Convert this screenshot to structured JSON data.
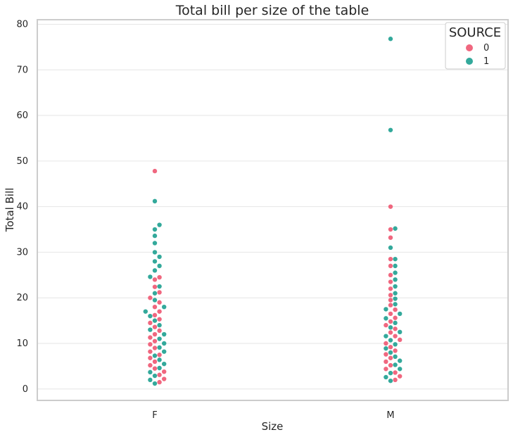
{
  "chart_data": {
    "type": "scatter",
    "plot_kind": "swarm",
    "title": "Total bill per size of the table",
    "xlabel": "Size",
    "ylabel": "Total Bill",
    "categories": [
      "F",
      "M"
    ],
    "ylim": [
      -2.5,
      81
    ],
    "yticks": [
      0,
      10,
      20,
      30,
      40,
      50,
      60,
      70,
      80
    ],
    "grid": true,
    "legend": {
      "title": "SOURCE",
      "placement": "top-right",
      "entries": [
        {
          "label": "0",
          "color": "#f0677f"
        },
        {
          "label": "1",
          "color": "#33a99b"
        }
      ]
    },
    "series": [
      {
        "name": "0",
        "color": "#f0677f",
        "values": {
          "F": [
            1.5,
            2.2,
            3.1,
            3.8,
            4.5,
            5.2,
            6.0,
            6.8,
            7.5,
            8.2,
            9.0,
            9.8,
            10.5,
            11.3,
            12.0,
            12.8,
            13.6,
            14.5,
            15.3,
            16.2,
            17.0,
            18.0,
            19.0,
            20.0,
            21.2,
            22.4,
            24.0,
            24.5,
            47.8
          ],
          "M": [
            2.0,
            2.8,
            3.6,
            4.4,
            5.2,
            6.0,
            6.8,
            7.6,
            8.4,
            9.2,
            10.0,
            10.8,
            11.6,
            12.4,
            13.2,
            14.0,
            14.8,
            15.6,
            16.5,
            17.4,
            18.4,
            19.5,
            20.6,
            22.0,
            23.5,
            25.0,
            27.0,
            28.5,
            33.2,
            35.0,
            40.0
          ]
        }
      },
      {
        "name": "1",
        "color": "#33a99b",
        "values": {
          "F": [
            1.2,
            2.0,
            2.9,
            3.7,
            4.6,
            5.5,
            6.4,
            7.3,
            8.2,
            9.1,
            10.0,
            11.0,
            12.0,
            13.0,
            14.0,
            15.0,
            16.0,
            17.0,
            18.0,
            19.5,
            21.0,
            22.5,
            24.6,
            26.0,
            27.0,
            28.0,
            29.0,
            30.0,
            32.0,
            33.6,
            35.0,
            36.0,
            41.2
          ],
          "M": [
            1.8,
            2.6,
            3.5,
            4.4,
            5.3,
            6.2,
            7.1,
            8.0,
            8.9,
            9.8,
            10.7,
            11.6,
            12.5,
            13.5,
            14.5,
            15.5,
            16.5,
            17.5,
            18.6,
            19.8,
            21.0,
            22.5,
            24.0,
            25.5,
            27.0,
            28.5,
            31.0,
            35.2,
            56.8,
            76.8
          ]
        }
      }
    ]
  }
}
